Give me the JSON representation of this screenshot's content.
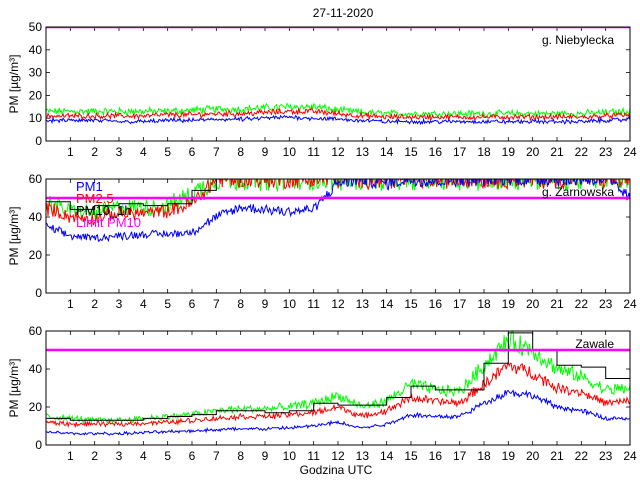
{
  "title": "27-11-2020",
  "xlabel": "Godzina UTC",
  "colors": {
    "pm1": "#0000ff",
    "pm25": "#ff0000",
    "pm10": "#00ff00",
    "pm10_1h": "#000000",
    "limit": "#ff00ff"
  },
  "chart_data": [
    {
      "type": "line",
      "station": "g. Niebylecka",
      "ylabel": "PM [µg/m³]",
      "xlim": [
        0,
        24
      ],
      "ylim": [
        0,
        50
      ],
      "yticks": [
        0,
        10,
        20,
        30,
        40,
        50
      ],
      "xticks": [
        1,
        2,
        3,
        4,
        5,
        6,
        7,
        8,
        9,
        10,
        11,
        12,
        13,
        14,
        15,
        16,
        17,
        18,
        19,
        20,
        21,
        22,
        23,
        24
      ],
      "limit_pm10": 50,
      "legend": [],
      "x": [
        0,
        1,
        2,
        3,
        4,
        5,
        6,
        7,
        8,
        9,
        10,
        11,
        12,
        13,
        14,
        15,
        16,
        17,
        18,
        19,
        20,
        21,
        22,
        23,
        24
      ],
      "series": [
        {
          "name": "PM1",
          "values": [
            9,
            9,
            9,
            8.5,
            8.5,
            9,
            9,
            9.5,
            9.5,
            10,
            10.5,
            10,
            9.5,
            9,
            8.5,
            8.5,
            8.5,
            8.5,
            8.5,
            8.5,
            8.5,
            8.5,
            8.5,
            9,
            9.5
          ]
        },
        {
          "name": "PM2.5",
          "values": [
            11,
            11,
            11,
            11,
            11,
            11.5,
            11.5,
            12,
            12,
            12.5,
            13,
            13,
            12,
            11,
            10.5,
            10.5,
            10.5,
            10.5,
            10.5,
            10.5,
            10.5,
            10.5,
            10.5,
            11,
            11.5
          ]
        },
        {
          "name": "PM10",
          "values": [
            13,
            13,
            13,
            13,
            13,
            13,
            13.5,
            14,
            14,
            14.5,
            15,
            15,
            13.5,
            12.5,
            12,
            12,
            12,
            12,
            12,
            12,
            12,
            12,
            12,
            12.5,
            13
          ]
        }
      ]
    },
    {
      "type": "line",
      "station": "g. Zarnowska",
      "ylabel": "PM [µg/m³]",
      "xlim": [
        0,
        24
      ],
      "ylim": [
        0,
        60
      ],
      "yticks": [
        0,
        20,
        40,
        60
      ],
      "xticks": [
        1,
        2,
        3,
        4,
        5,
        6,
        7,
        8,
        9,
        10,
        11,
        12,
        13,
        14,
        15,
        16,
        17,
        18,
        19,
        20,
        21,
        22,
        23,
        24
      ],
      "limit_pm10": 50,
      "legend": [
        "PM1",
        "PM2.5",
        "PM10_1h",
        "Limit PM10"
      ],
      "x": [
        0,
        1,
        2,
        3,
        4,
        5,
        6,
        7,
        8,
        9,
        10,
        11,
        12,
        13,
        14,
        15,
        16,
        17,
        18,
        19,
        20,
        21,
        22,
        23,
        24
      ],
      "series": [
        {
          "name": "PM1",
          "values": [
            35,
            30,
            29,
            30,
            31,
            31,
            32,
            40,
            45,
            44,
            43,
            44,
            58,
            60,
            58,
            60,
            59,
            60,
            60,
            60,
            60,
            60,
            60,
            60,
            50
          ]
        },
        {
          "name": "PM2.5",
          "values": [
            45,
            40,
            39,
            42,
            42,
            43,
            47,
            60,
            60,
            60,
            60,
            60,
            60,
            60,
            60,
            60,
            60,
            60,
            60,
            60,
            60,
            60,
            60,
            60,
            60
          ]
        },
        {
          "name": "PM10",
          "values": [
            48,
            43,
            42,
            45,
            45,
            46,
            52,
            60,
            60,
            60,
            60,
            60,
            60,
            60,
            60,
            60,
            60,
            60,
            60,
            60,
            60,
            60,
            60,
            60,
            60
          ]
        },
        {
          "name": "PM10_1h",
          "values": [
            48,
            44,
            46,
            47,
            46,
            47,
            54,
            60,
            60,
            60,
            60,
            60,
            60,
            60,
            60,
            60,
            60,
            60,
            60,
            60,
            60,
            60,
            60,
            60,
            60
          ]
        }
      ]
    },
    {
      "type": "line",
      "station": "Zawale",
      "ylabel": "PM [µg/m³]",
      "xlim": [
        0,
        24
      ],
      "ylim": [
        0,
        60
      ],
      "yticks": [
        0,
        20,
        40,
        60
      ],
      "xticks": [
        1,
        2,
        3,
        4,
        5,
        6,
        7,
        8,
        9,
        10,
        11,
        12,
        13,
        14,
        15,
        16,
        17,
        18,
        19,
        20,
        21,
        22,
        23,
        24
      ],
      "limit_pm10": 50,
      "legend": [],
      "x": [
        0,
        1,
        2,
        3,
        4,
        5,
        6,
        7,
        8,
        9,
        10,
        11,
        12,
        13,
        14,
        15,
        16,
        17,
        18,
        19,
        20,
        21,
        22,
        23,
        24
      ],
      "series": [
        {
          "name": "PM1",
          "values": [
            7,
            6,
            6,
            6,
            6.5,
            7,
            7.5,
            8,
            8.5,
            8.5,
            9,
            10,
            12,
            9,
            11,
            16,
            15,
            15,
            22,
            28,
            26,
            20,
            18,
            14,
            14
          ]
        },
        {
          "name": "PM2.5",
          "values": [
            12,
            11,
            11,
            11,
            11.5,
            12,
            13,
            14,
            15,
            15,
            16,
            17,
            20,
            15,
            18,
            25,
            23,
            22,
            32,
            42,
            38,
            30,
            28,
            22,
            23
          ]
        },
        {
          "name": "PM10",
          "values": [
            15,
            14,
            13,
            13,
            14,
            15,
            16,
            18,
            19,
            19,
            20,
            22,
            26,
            20,
            23,
            32,
            29,
            28,
            42,
            55,
            50,
            40,
            36,
            29,
            30
          ]
        },
        {
          "name": "PM10_1h",
          "values": [
            14,
            13,
            13,
            13,
            14,
            15,
            16,
            18,
            18,
            17,
            18,
            22,
            21,
            21,
            25,
            31,
            29,
            29,
            43,
            59,
            50,
            42,
            41,
            35,
            35
          ]
        }
      ]
    }
  ]
}
